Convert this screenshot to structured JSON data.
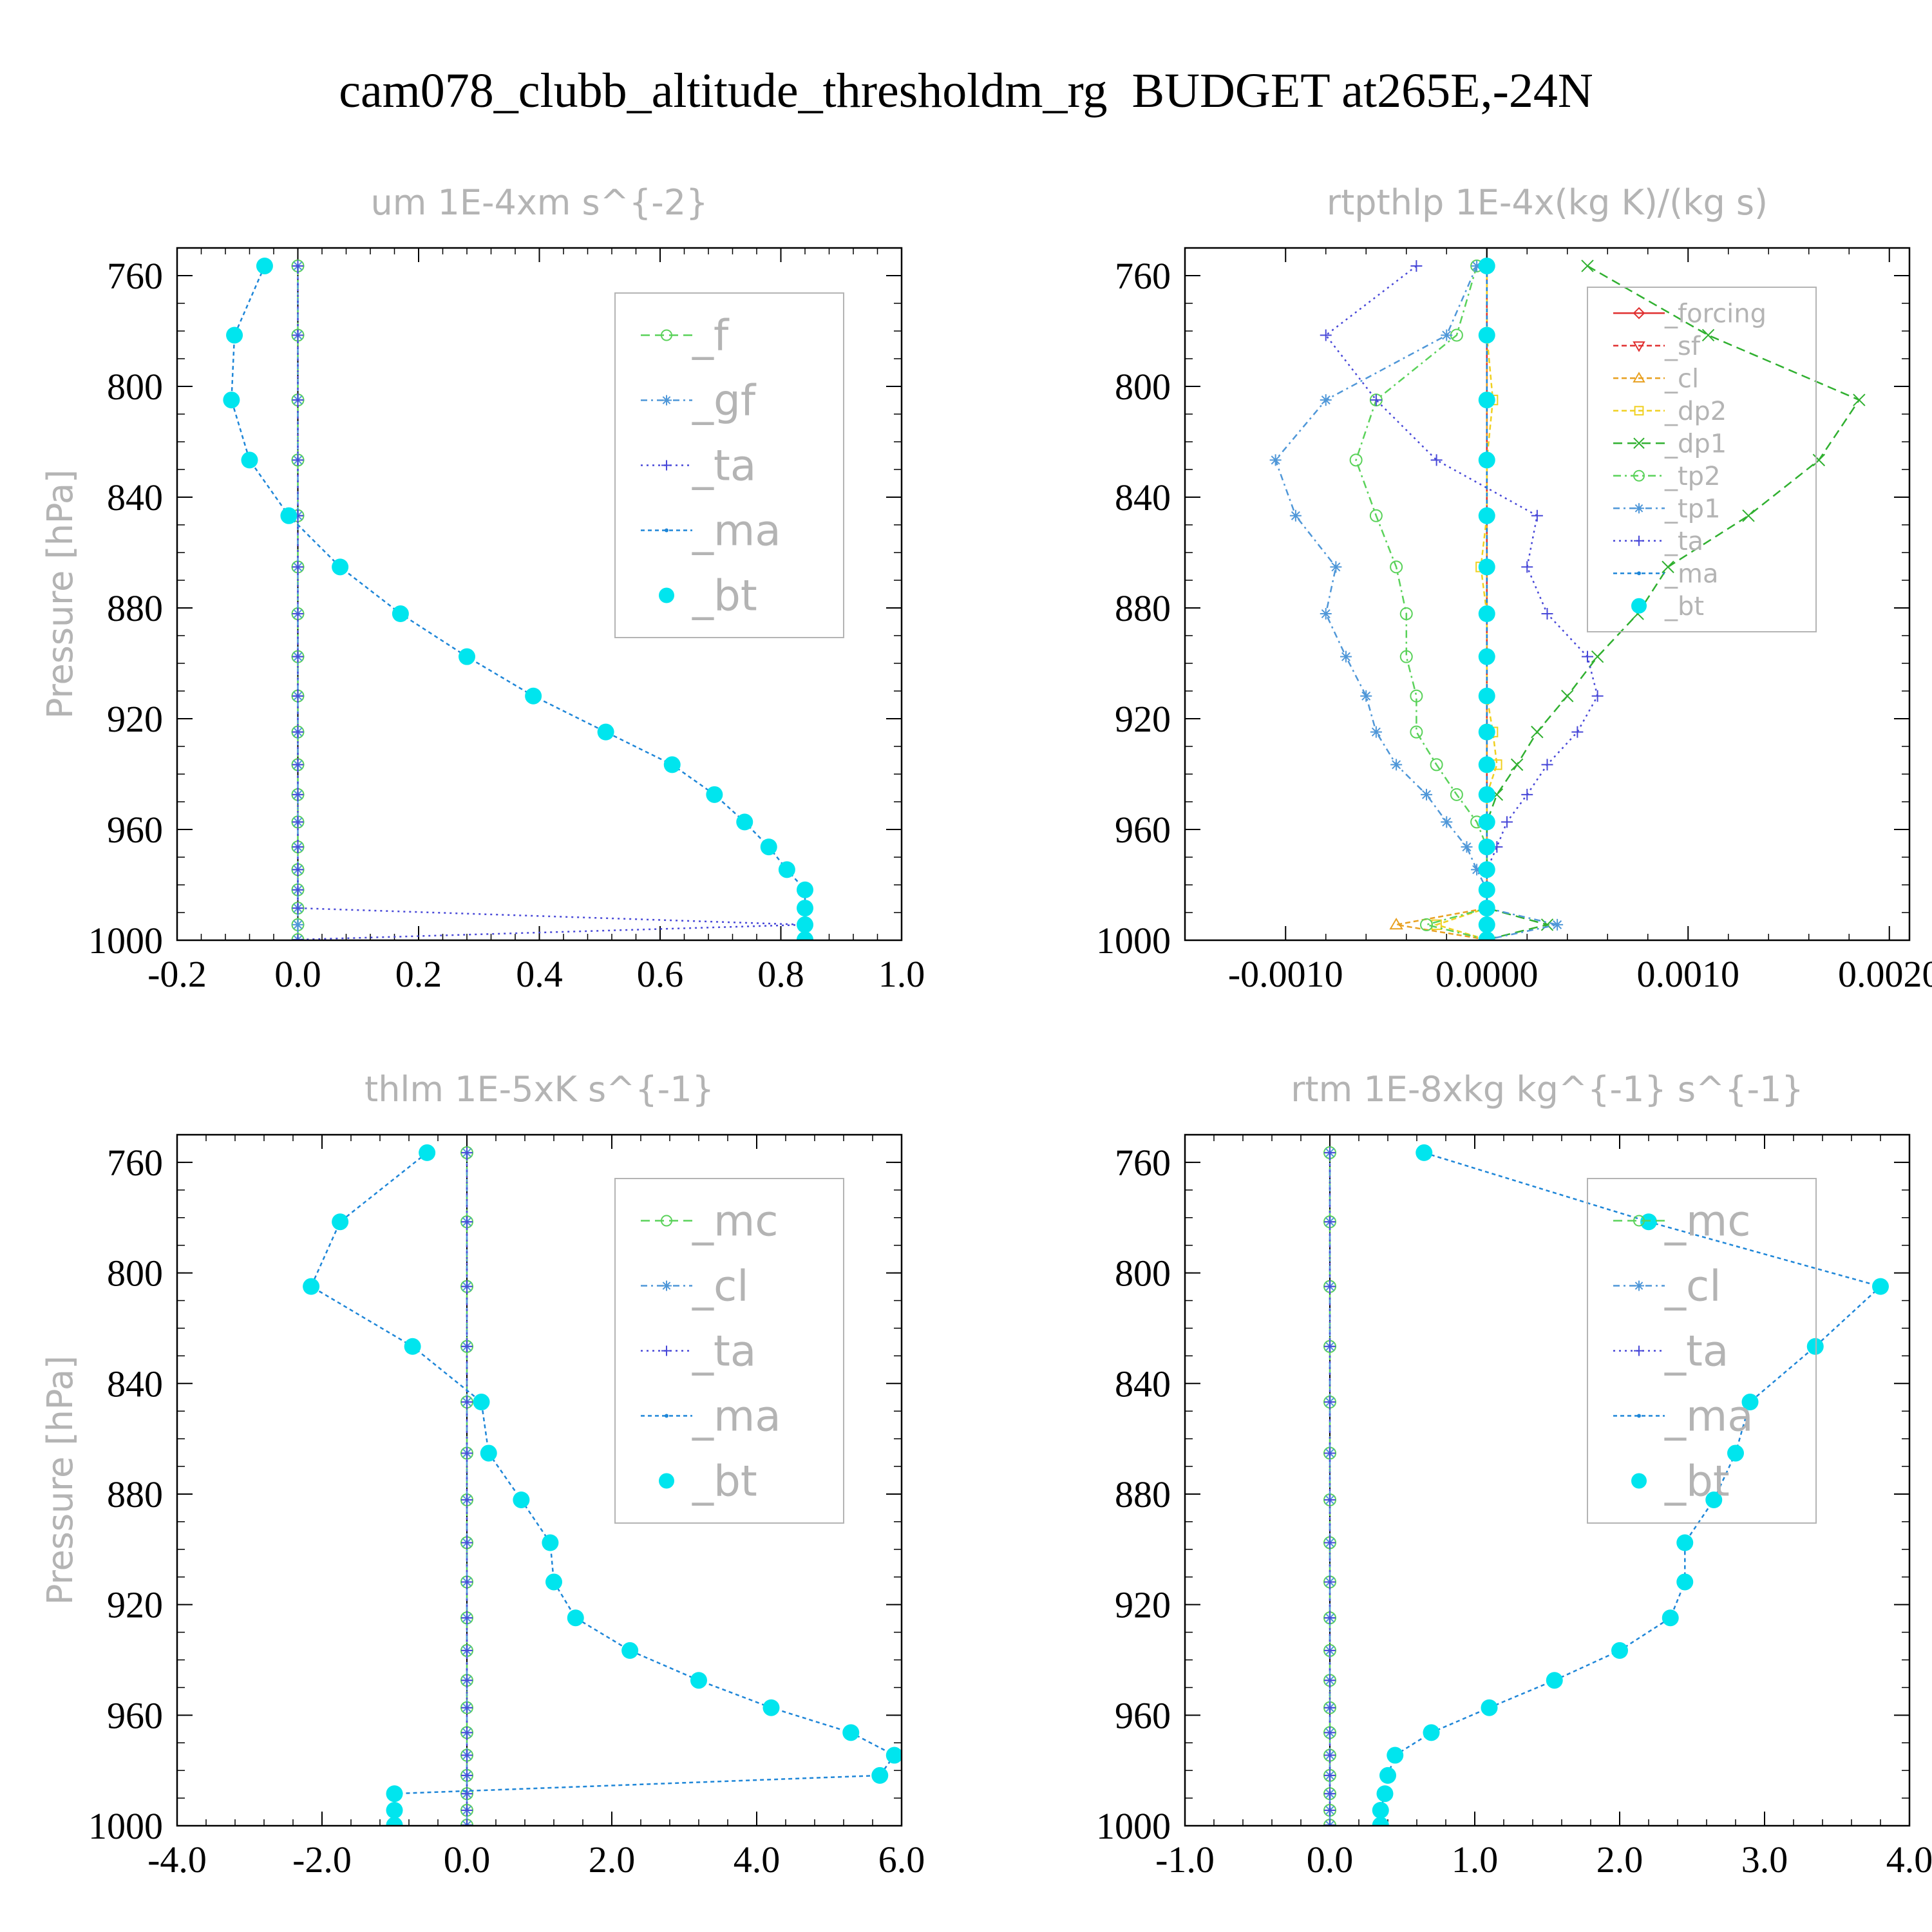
{
  "figure": {
    "title": "cam078_clubb_altitude_thresholdm_rg  BUDGET at265E,-24N"
  },
  "series_styles": {
    "_f": {
      "color": "#5ad25a",
      "marker": "circle",
      "dash": "14,8"
    },
    "_gf": {
      "color": "#4f97d8",
      "marker": "star",
      "dash": "10,6,3,6"
    },
    "_ta": {
      "color": "#4848d8",
      "marker": "plus",
      "dash": "3,6"
    },
    "_ma": {
      "color": "#1e86d8",
      "marker": "dot",
      "dash": "6,5"
    },
    "_bt": {
      "color": "#00e5ee",
      "marker": "filled-circle",
      "dash": ""
    },
    "_mc": {
      "color": "#5ad25a",
      "marker": "circle",
      "dash": "14,8"
    },
    "_cl": {
      "color": "#4f97d8",
      "marker": "star",
      "dash": "10,6,3,6"
    },
    "_forcing": {
      "color": "#e03030",
      "marker": "diamond",
      "dash": ""
    },
    "_sf": {
      "color": "#e03030",
      "marker": "tri-down",
      "dash": "8,5"
    },
    "_cl_rt": {
      "color": "#e8a020",
      "marker": "tri-up",
      "dash": "8,5"
    },
    "_dp2": {
      "color": "#f0d020",
      "marker": "square",
      "dash": "8,5"
    },
    "_dp1": {
      "color": "#30b030",
      "marker": "x",
      "dash": "14,8"
    },
    "_tp2": {
      "color": "#5ad25a",
      "marker": "circle",
      "dash": "12,6,3,6"
    },
    "_tp1": {
      "color": "#4f97d8",
      "marker": "star",
      "dash": "10,6,3,6"
    }
  },
  "chart_data": [
    {
      "type": "line",
      "id": "um",
      "title": "um   1E-4xm s^{-2}",
      "ylabel": "Pressure [hPa]",
      "xlim": [
        -0.2,
        1.0
      ],
      "ylim": [
        1000,
        750
      ],
      "xticks": [
        "-0.2",
        "0.0",
        "0.2",
        "0.4",
        "0.6",
        "0.8",
        "1.0"
      ],
      "xtick_values": [
        -0.2,
        0.0,
        0.2,
        0.4,
        0.6,
        0.8,
        1.0
      ],
      "yticks": [
        "760",
        "800",
        "840",
        "880",
        "920",
        "960",
        "1000"
      ],
      "ytick_values": [
        760,
        800,
        840,
        880,
        920,
        960,
        1000
      ],
      "legend_position": "upper-right",
      "pressure": [
        756.5,
        781.5,
        804.9,
        826.6,
        846.7,
        865.2,
        882.1,
        897.6,
        911.8,
        924.8,
        936.6,
        947.4,
        957.3,
        966.3,
        974.5,
        981.8,
        988.4,
        994.4,
        999.8
      ],
      "series": [
        {
          "name": "_f",
          "style": "_f",
          "values": [
            0,
            0,
            0,
            0,
            0,
            0,
            0,
            0,
            0,
            0,
            0,
            0,
            0,
            0,
            0,
            0,
            0,
            0,
            0
          ]
        },
        {
          "name": "_gf",
          "style": "_gf",
          "values": [
            0,
            0,
            0,
            0,
            0,
            0,
            0,
            0,
            0,
            0,
            0,
            0,
            0,
            0,
            0,
            0,
            0,
            0,
            0
          ]
        },
        {
          "name": "_ta",
          "style": "_ta",
          "values": [
            0,
            0,
            0,
            0,
            0,
            0,
            0,
            0,
            0,
            0,
            0,
            0,
            0,
            0,
            0,
            0,
            0,
            0.84,
            0
          ]
        },
        {
          "name": "_ma",
          "style": "_ma",
          "values": [
            -0.055,
            -0.105,
            -0.11,
            -0.08,
            -0.015,
            0.07,
            0.17,
            0.28,
            0.39,
            0.51,
            0.62,
            0.69,
            0.74,
            0.78,
            0.81,
            0.84,
            0.84,
            0.84,
            0.84
          ]
        },
        {
          "name": "_bt",
          "style": "_bt",
          "values": [
            -0.055,
            -0.105,
            -0.11,
            -0.08,
            -0.015,
            0.07,
            0.17,
            0.28,
            0.39,
            0.51,
            0.62,
            0.69,
            0.74,
            0.78,
            0.81,
            0.84,
            0.84,
            0.84,
            0.84
          ]
        }
      ]
    },
    {
      "type": "line",
      "id": "rtpthlp",
      "title": "rtpthlp   1E-4x(kg K)/(kg s)",
      "ylabel": "Pressure [hPa]",
      "xlim": [
        -0.0015,
        0.0021
      ],
      "ylim": [
        1000,
        750
      ],
      "xticks": [
        "-0.0010",
        "0.0000",
        "0.0010",
        "0.0020"
      ],
      "xtick_values": [
        -0.001,
        0.0,
        0.001,
        0.002
      ],
      "yticks": [
        "760",
        "800",
        "840",
        "880",
        "920",
        "960",
        "1000"
      ],
      "ytick_values": [
        760,
        800,
        840,
        880,
        920,
        960,
        1000
      ],
      "legend_position": "upper-right",
      "pressure": [
        756.5,
        781.5,
        804.9,
        826.6,
        846.7,
        865.2,
        882.1,
        897.6,
        911.8,
        924.8,
        936.6,
        947.4,
        957.3,
        966.3,
        974.5,
        981.8,
        988.4,
        994.4,
        999.8
      ],
      "series": [
        {
          "name": "_forcing",
          "style": "_forcing",
          "values": [
            0,
            0,
            0,
            0,
            0,
            0,
            0,
            0,
            0,
            0,
            0,
            0,
            0,
            0,
            0,
            0,
            0,
            0,
            0
          ]
        },
        {
          "name": "_sf",
          "style": "_sf",
          "values": [
            0,
            0,
            0,
            0,
            0,
            0,
            0,
            0,
            0,
            0,
            0,
            0,
            0,
            0,
            0,
            0,
            0,
            0,
            0
          ]
        },
        {
          "name": "_cl",
          "style": "_cl_rt",
          "values": [
            0,
            0,
            0,
            0,
            0,
            0,
            0,
            0,
            0,
            0,
            0,
            0,
            0,
            0,
            0,
            0,
            0,
            -0.00045,
            0
          ]
        },
        {
          "name": "_dp2",
          "style": "_dp2",
          "values": [
            0,
            0,
            3e-05,
            0,
            0,
            -3e-05,
            0,
            0,
            0,
            3e-05,
            5e-05,
            0,
            0,
            0,
            0,
            0,
            0,
            -0.00025,
            0
          ]
        },
        {
          "name": "_dp1",
          "style": "_dp1",
          "values": [
            0.0005,
            0.0011,
            0.00185,
            0.00165,
            0.0013,
            0.0009,
            0.00075,
            0.00055,
            0.0004,
            0.00025,
            0.00015,
            5e-05,
            0.0,
            0.0,
            0.0,
            0.0,
            0.0,
            0.0003,
            0.0
          ]
        },
        {
          "name": "_tp2",
          "style": "_tp2",
          "values": [
            -5e-05,
            -0.00015,
            -0.00055,
            -0.00065,
            -0.00055,
            -0.00045,
            -0.0004,
            -0.0004,
            -0.00035,
            -0.00035,
            -0.00025,
            -0.00015,
            -5e-05,
            0.0,
            0.0,
            0.0,
            0.0,
            -0.0003,
            0.0
          ]
        },
        {
          "name": "_tp1",
          "style": "_tp1",
          "values": [
            -5e-05,
            -0.0002,
            -0.0008,
            -0.00105,
            -0.00095,
            -0.00075,
            -0.0008,
            -0.0007,
            -0.0006,
            -0.00055,
            -0.00045,
            -0.0003,
            -0.0002,
            -0.0001,
            -5e-05,
            0.0,
            0.0,
            0.00035,
            0.0
          ]
        },
        {
          "name": "_ta",
          "style": "_ta",
          "values": [
            -0.00035,
            -0.0008,
            -0.00055,
            -0.00025,
            0.00025,
            0.0002,
            0.0003,
            0.0005,
            0.00055,
            0.00045,
            0.0003,
            0.0002,
            0.0001,
            5e-05,
            0.0,
            0.0,
            0.0,
            0.0,
            0.0
          ]
        },
        {
          "name": "_ma",
          "style": "_ma",
          "values": [
            0,
            0,
            0,
            0,
            0,
            0,
            0,
            0,
            0,
            0,
            0,
            0,
            0,
            0,
            0,
            0,
            0,
            0,
            0
          ]
        },
        {
          "name": "_bt",
          "style": "_bt",
          "values": [
            0,
            0,
            0,
            0,
            0,
            0,
            0,
            0,
            0,
            0,
            0,
            0,
            0,
            0,
            0,
            0,
            0,
            0,
            0
          ]
        }
      ]
    },
    {
      "type": "line",
      "id": "thlm",
      "title": "thlm   1E-5xK s^{-1}",
      "ylabel": "Pressure [hPa]",
      "xlim": [
        -4.0,
        6.0
      ],
      "ylim": [
        1000,
        750
      ],
      "xticks": [
        "-4.0",
        "-2.0",
        "0.0",
        "2.0",
        "4.0",
        "6.0"
      ],
      "xtick_values": [
        -4.0,
        -2.0,
        0.0,
        2.0,
        4.0,
        6.0
      ],
      "yticks": [
        "760",
        "800",
        "840",
        "880",
        "920",
        "960",
        "1000"
      ],
      "ytick_values": [
        760,
        800,
        840,
        880,
        920,
        960,
        1000
      ],
      "legend_position": "upper-right",
      "pressure": [
        756.5,
        781.5,
        804.9,
        826.6,
        846.7,
        865.2,
        882.1,
        897.6,
        911.8,
        924.8,
        936.6,
        947.4,
        957.3,
        966.3,
        974.5,
        981.8,
        988.4,
        994.4,
        999.8
      ],
      "series": [
        {
          "name": "_mc",
          "style": "_mc",
          "values": [
            0,
            0,
            0,
            0,
            0,
            0,
            0,
            0,
            0,
            0,
            0,
            0,
            0,
            0,
            0,
            0,
            0,
            0,
            0
          ]
        },
        {
          "name": "_cl",
          "style": "_cl",
          "values": [
            0,
            0,
            0,
            0,
            0,
            0,
            0,
            0,
            0,
            0,
            0,
            0,
            0,
            0,
            0,
            0,
            0,
            0,
            0
          ]
        },
        {
          "name": "_ta",
          "style": "_ta",
          "values": [
            0,
            0,
            0,
            0,
            0,
            0,
            0,
            0,
            0,
            0,
            0,
            0,
            0,
            0,
            0,
            0,
            0,
            0,
            0
          ]
        },
        {
          "name": "_ma",
          "style": "_ma",
          "values": [
            -0.55,
            -1.75,
            -2.15,
            -0.75,
            0.2,
            0.3,
            0.75,
            1.15,
            1.2,
            1.5,
            2.25,
            3.2,
            4.2,
            5.3,
            5.9,
            5.7,
            -1.0,
            -1.0,
            -1.0
          ]
        },
        {
          "name": "_bt",
          "style": "_bt",
          "values": [
            -0.55,
            -1.75,
            -2.15,
            -0.75,
            0.2,
            0.3,
            0.75,
            1.15,
            1.2,
            1.5,
            2.25,
            3.2,
            4.2,
            5.3,
            5.9,
            5.7,
            -1.0,
            -1.0,
            -1.0
          ]
        }
      ]
    },
    {
      "type": "line",
      "id": "rtm",
      "title": "rtm   1E-8xkg kg^{-1} s^{-1}",
      "ylabel": "Pressure [hPa]",
      "xlim": [
        -1.0,
        4.0
      ],
      "ylim": [
        1000,
        750
      ],
      "xticks": [
        "-1.0",
        "0.0",
        "1.0",
        "2.0",
        "3.0",
        "4.0"
      ],
      "xtick_values": [
        -1.0,
        0.0,
        1.0,
        2.0,
        3.0,
        4.0
      ],
      "yticks": [
        "760",
        "800",
        "840",
        "880",
        "920",
        "960",
        "1000"
      ],
      "ytick_values": [
        760,
        800,
        840,
        880,
        920,
        960,
        1000
      ],
      "legend_position": "upper-right",
      "pressure": [
        756.5,
        781.5,
        804.9,
        826.6,
        846.7,
        865.2,
        882.1,
        897.6,
        911.8,
        924.8,
        936.6,
        947.4,
        957.3,
        966.3,
        974.5,
        981.8,
        988.4,
        994.4,
        999.8
      ],
      "series": [
        {
          "name": "_mc",
          "style": "_mc",
          "values": [
            0,
            0,
            0,
            0,
            0,
            0,
            0,
            0,
            0,
            0,
            0,
            0,
            0,
            0,
            0,
            0,
            0,
            0,
            0
          ]
        },
        {
          "name": "_cl",
          "style": "_cl",
          "values": [
            0,
            0,
            0,
            0,
            0,
            0,
            0,
            0,
            0,
            0,
            0,
            0,
            0,
            0,
            0,
            0,
            0,
            0,
            0
          ]
        },
        {
          "name": "_ta",
          "style": "_ta",
          "values": [
            0,
            0,
            0,
            0,
            0,
            0,
            0,
            0,
            0,
            0,
            0,
            0,
            0,
            0,
            0,
            0,
            0,
            0,
            0
          ]
        },
        {
          "name": "_ma",
          "style": "_ma",
          "values": [
            0.65,
            2.2,
            3.8,
            3.35,
            2.9,
            2.8,
            2.65,
            2.45,
            2.45,
            2.35,
            2.0,
            1.55,
            1.1,
            0.7,
            0.45,
            0.4,
            0.38,
            0.35,
            0.35
          ]
        },
        {
          "name": "_bt",
          "style": "_bt",
          "values": [
            0.65,
            2.2,
            3.8,
            3.35,
            2.9,
            2.8,
            2.65,
            2.45,
            2.45,
            2.35,
            2.0,
            1.55,
            1.1,
            0.7,
            0.45,
            0.4,
            0.38,
            0.35,
            0.35
          ]
        }
      ]
    }
  ]
}
